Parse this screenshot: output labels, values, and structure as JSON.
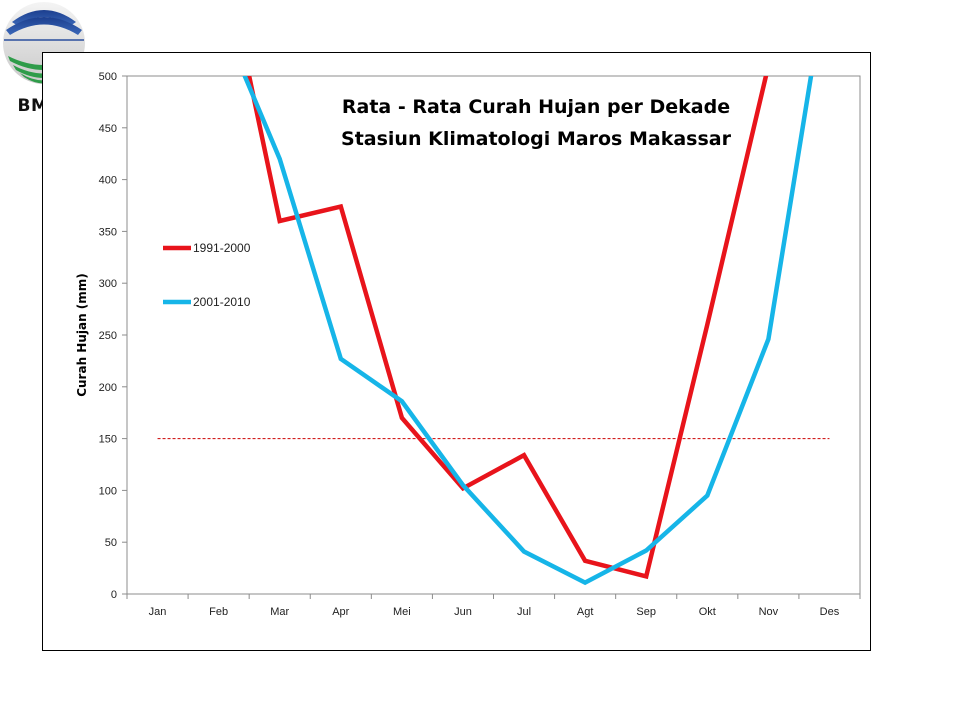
{
  "logo": {
    "text": "BMKG"
  },
  "chart_data": {
    "type": "line",
    "title_lines": [
      "Rata - Rata Curah Hujan per Dekade",
      "Stasiun Klimatologi Maros Makassar"
    ],
    "xlabel": "",
    "ylabel": "Curah Hujan (mm)",
    "categories": [
      "Jan",
      "Feb",
      "Mar",
      "Apr",
      "Mei",
      "Jun",
      "Jul",
      "Agt",
      "Sep",
      "Okt",
      "Nov",
      "Des"
    ],
    "ylim": [
      0,
      500
    ],
    "yticks": [
      0,
      50,
      100,
      150,
      200,
      250,
      300,
      350,
      400,
      450,
      500
    ],
    "grid": false,
    "legend_position": "left",
    "series": [
      {
        "name": "1991-2000",
        "color": "#e8141b",
        "values": [
          null,
          640,
          360,
          374,
          170,
          102,
          134,
          32,
          17,
          260,
          510,
          null
        ]
      },
      {
        "name": "2001-2010",
        "color": "#16b5e8",
        "values": [
          null,
          560,
          420,
          227,
          186,
          105,
          41,
          11,
          42,
          95,
          246,
          610
        ]
      }
    ],
    "reference_line": {
      "value": 150,
      "color": "#cc0000",
      "style": "dashed"
    }
  }
}
